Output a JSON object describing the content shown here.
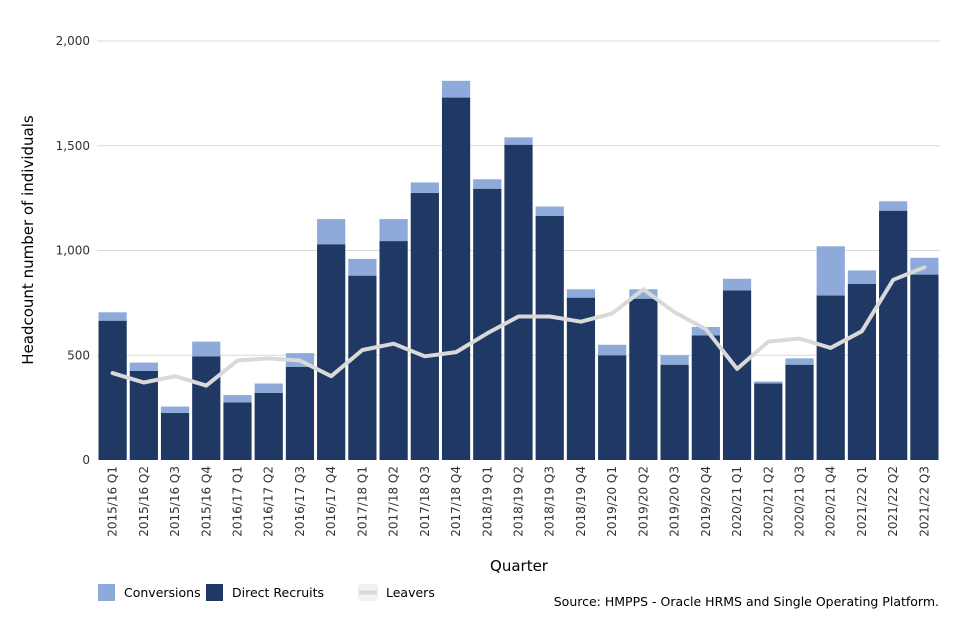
{
  "chart_data": {
    "type": "bar",
    "stacked": true,
    "categories": [
      "2015/16 Q1",
      "2015/16 Q2",
      "2015/16 Q3",
      "2015/16 Q4",
      "2016/17 Q1",
      "2016/17 Q2",
      "2016/17 Q3",
      "2016/17 Q4",
      "2017/18 Q1",
      "2017/18 Q2",
      "2017/18 Q3",
      "2017/18 Q4",
      "2018/19 Q1",
      "2018/19 Q2",
      "2018/19 Q3",
      "2018/19 Q4",
      "2019/20 Q1",
      "2019/20 Q2",
      "2019/20 Q3",
      "2019/20 Q4",
      "2020/21 Q1",
      "2020/21 Q2",
      "2020/21 Q3",
      "2020/21 Q4",
      "2021/22 Q1",
      "2021/22 Q2",
      "2021/22 Q3"
    ],
    "series": [
      {
        "name": "Direct Recruits",
        "kind": "bar",
        "color": "#1f3864",
        "values": [
          665,
          425,
          225,
          495,
          275,
          320,
          445,
          1030,
          880,
          1045,
          1275,
          1730,
          1295,
          1505,
          1165,
          775,
          500,
          770,
          455,
          595,
          810,
          365,
          455,
          785,
          840,
          1190,
          885
        ]
      },
      {
        "name": "Conversions",
        "kind": "bar",
        "color": "#8eaadb",
        "values": [
          40,
          40,
          30,
          70,
          35,
          45,
          65,
          120,
          80,
          105,
          50,
          80,
          45,
          35,
          45,
          40,
          50,
          45,
          45,
          40,
          55,
          10,
          30,
          235,
          65,
          45,
          80
        ]
      },
      {
        "name": "Leavers",
        "kind": "line",
        "color": "#d9d9d9",
        "values": [
          415,
          370,
          400,
          355,
          475,
          485,
          475,
          400,
          525,
          555,
          495,
          515,
          605,
          685,
          685,
          660,
          700,
          815,
          705,
          625,
          435,
          565,
          580,
          535,
          615,
          860,
          920
        ]
      }
    ],
    "title": "",
    "xlabel": "Quarter",
    "ylabel": "Headcount number of individuals",
    "ylim": [
      0,
      2000
    ],
    "yticks": [
      0,
      500,
      1000,
      1500,
      2000
    ],
    "ytick_labels": [
      "0",
      "500",
      "1,000",
      "1,500",
      "2,000"
    ],
    "grid": true,
    "legend": [
      {
        "label": "Conversions",
        "color": "#8eaadb",
        "marker": "square"
      },
      {
        "label": "Direct Recruits",
        "color": "#1f3864",
        "marker": "square"
      },
      {
        "label": "Leavers",
        "color": "#d9d9d9",
        "marker": "line"
      }
    ],
    "legend_position": "bottom-left"
  },
  "source_note": "Source: HMPPS - Oracle HRMS and Single Operating Platform."
}
